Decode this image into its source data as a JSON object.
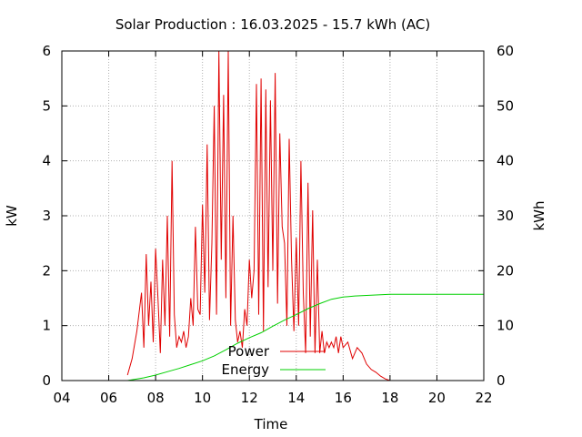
{
  "chart_data": {
    "type": "line",
    "title": "Solar Production : 16.03.2025 - 15.7 kWh (AC)",
    "xlabel": "Time",
    "ylabel": "kW",
    "y2label": "kWh",
    "xlim": [
      4,
      22
    ],
    "ylim": [
      0,
      6
    ],
    "y2lim": [
      0,
      60
    ],
    "xticks": [
      "04",
      "06",
      "08",
      "10",
      "12",
      "14",
      "16",
      "18",
      "20",
      "22"
    ],
    "yticks": [
      "0",
      "1",
      "2",
      "3",
      "4",
      "5",
      "6"
    ],
    "y2ticks": [
      "0",
      "10",
      "20",
      "30",
      "40",
      "50",
      "60"
    ],
    "grid": true,
    "legend_position": "bottom-center",
    "series": [
      {
        "name": "Power",
        "axis": "left",
        "color": "#e00000",
        "x": [
          6.8,
          7.0,
          7.2,
          7.4,
          7.5,
          7.6,
          7.7,
          7.8,
          7.9,
          8.0,
          8.1,
          8.2,
          8.3,
          8.4,
          8.5,
          8.6,
          8.7,
          8.8,
          8.9,
          9.0,
          9.1,
          9.2,
          9.3,
          9.4,
          9.5,
          9.6,
          9.7,
          9.8,
          9.9,
          10.0,
          10.1,
          10.2,
          10.3,
          10.4,
          10.5,
          10.6,
          10.7,
          10.8,
          10.9,
          11.0,
          11.1,
          11.2,
          11.3,
          11.4,
          11.5,
          11.6,
          11.7,
          11.8,
          11.9,
          12.0,
          12.1,
          12.2,
          12.3,
          12.4,
          12.5,
          12.6,
          12.7,
          12.8,
          12.9,
          13.0,
          13.1,
          13.2,
          13.3,
          13.4,
          13.5,
          13.6,
          13.7,
          13.8,
          13.9,
          14.0,
          14.1,
          14.2,
          14.3,
          14.4,
          14.5,
          14.6,
          14.7,
          14.8,
          14.9,
          15.0,
          15.1,
          15.2,
          15.3,
          15.4,
          15.5,
          15.6,
          15.7,
          15.8,
          15.9,
          16.0,
          16.2,
          16.4,
          16.6,
          16.8,
          17.0,
          17.2,
          17.4,
          17.6,
          17.8,
          18.0,
          18.2,
          18.4,
          18.6
        ],
        "values": [
          0.1,
          0.4,
          0.9,
          1.6,
          0.6,
          2.3,
          1.0,
          1.8,
          0.7,
          2.4,
          1.5,
          0.5,
          2.2,
          1.0,
          3.0,
          0.8,
          4.0,
          1.2,
          0.6,
          0.8,
          0.7,
          0.9,
          0.6,
          0.8,
          1.5,
          1.0,
          2.8,
          1.3,
          1.2,
          3.2,
          1.6,
          4.3,
          1.1,
          2.5,
          5.0,
          1.2,
          6.0,
          2.2,
          5.2,
          1.5,
          6.0,
          1.0,
          3.0,
          1.1,
          0.7,
          0.9,
          0.6,
          1.3,
          1.0,
          2.2,
          1.5,
          2.0,
          5.4,
          1.2,
          5.5,
          0.9,
          5.3,
          1.7,
          5.1,
          2.0,
          5.6,
          1.4,
          4.5,
          2.8,
          2.5,
          1.0,
          4.4,
          2.2,
          0.9,
          2.6,
          1.0,
          4.0,
          1.6,
          0.5,
          3.6,
          0.8,
          3.1,
          0.5,
          2.2,
          0.5,
          0.9,
          0.5,
          0.7,
          0.6,
          0.7,
          0.6,
          0.8,
          0.5,
          0.8,
          0.6,
          0.7,
          0.4,
          0.6,
          0.5,
          0.3,
          0.2,
          0.15,
          0.08,
          0.03,
          0.0,
          0.0,
          0.0,
          0.0
        ]
      },
      {
        "name": "Energy",
        "axis": "right",
        "color": "#00d000",
        "x": [
          6.8,
          7.5,
          8.0,
          8.5,
          9.0,
          9.5,
          10.0,
          10.5,
          11.0,
          11.5,
          12.0,
          12.5,
          13.0,
          13.5,
          14.0,
          14.5,
          15.0,
          15.5,
          16.0,
          16.5,
          17.0,
          17.5,
          18.0,
          18.5,
          19.0,
          20.0,
          21.0,
          22.0
        ],
        "values": [
          0.0,
          0.5,
          1.0,
          1.6,
          2.2,
          2.9,
          3.6,
          4.5,
          5.6,
          6.8,
          7.8,
          8.7,
          9.9,
          11.0,
          12.0,
          13.1,
          14.0,
          14.8,
          15.2,
          15.4,
          15.5,
          15.6,
          15.7,
          15.7,
          15.7,
          15.7,
          15.7,
          15.7
        ]
      }
    ]
  }
}
